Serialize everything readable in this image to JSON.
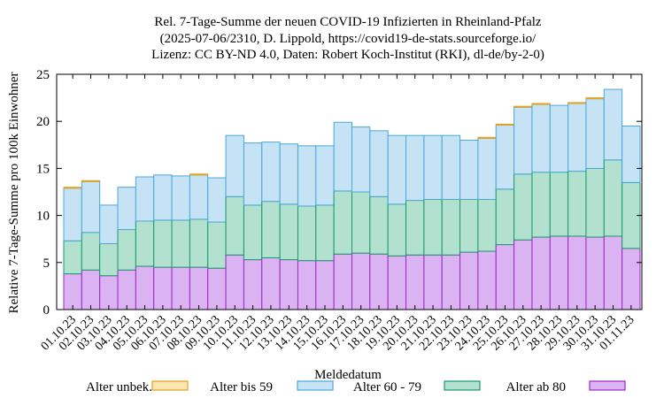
{
  "chart_data": {
    "type": "bar",
    "stacked": true,
    "title_lines": [
      "Rel. 7-Tage-Summe der neuen COVID-19 Infizierten in Rheinland-Pfalz",
      "(2025-07-06/2310, D. Lippold, https://covid19-de-stats.sourceforge.io/",
      "Lizenz: CC BY-ND 4.0, Daten: Robert Koch-Institut (RKI), dl-de/by-2-0)"
    ],
    "xlabel": "Meldedatum",
    "ylabel": "Relative 7-Tage-Summe pro 100k Einwohner",
    "ylim": [
      0,
      25
    ],
    "yticks": [
      0,
      5,
      10,
      15,
      20,
      25
    ],
    "grid": false,
    "legend_position": "bottom",
    "categories": [
      "01.10.23",
      "02.10.23",
      "03.10.23",
      "04.10.23",
      "05.10.23",
      "06.10.23",
      "07.10.23",
      "08.10.23",
      "09.10.23",
      "10.10.23",
      "11.10.23",
      "12.10.23",
      "13.10.23",
      "14.10.23",
      "15.10.23",
      "16.10.23",
      "17.10.23",
      "18.10.23",
      "19.10.23",
      "20.10.23",
      "21.10.23",
      "22.10.23",
      "23.10.23",
      "24.10.23",
      "25.10.23",
      "26.10.23",
      "27.10.23",
      "28.10.23",
      "29.10.23",
      "30.10.23",
      "31.10.23",
      "01.11.23"
    ],
    "series": [
      {
        "name": "Alter ab 80",
        "fill": "#dcb3f2",
        "stroke": "#9a2ac6",
        "values": [
          3.8,
          4.2,
          3.6,
          4.2,
          4.6,
          4.5,
          4.5,
          4.5,
          4.4,
          5.8,
          5.3,
          5.5,
          5.3,
          5.2,
          5.2,
          5.9,
          6.0,
          5.9,
          5.7,
          5.8,
          5.8,
          5.8,
          6.1,
          6.2,
          6.9,
          7.4,
          7.7,
          7.8,
          7.8,
          7.7,
          7.8,
          6.5
        ]
      },
      {
        "name": "Alter 60 - 79",
        "fill": "#b3e1cf",
        "stroke": "#1a9a6a",
        "values": [
          3.5,
          4.0,
          3.4,
          4.3,
          4.8,
          5.0,
          5.0,
          5.1,
          4.9,
          6.2,
          5.8,
          6.0,
          5.9,
          5.8,
          5.9,
          6.7,
          6.5,
          6.1,
          5.5,
          5.8,
          5.9,
          5.9,
          5.6,
          5.5,
          5.9,
          7.0,
          6.9,
          6.8,
          6.9,
          7.3,
          8.1,
          7.0
        ]
      },
      {
        "name": "Alter bis 59",
        "fill": "#c6e3f6",
        "stroke": "#4aa8d8",
        "values": [
          5.6,
          5.4,
          4.1,
          4.5,
          4.7,
          4.8,
          4.7,
          4.7,
          4.7,
          6.5,
          6.6,
          6.3,
          6.4,
          6.4,
          6.3,
          7.3,
          6.9,
          7.0,
          7.3,
          6.9,
          6.8,
          6.8,
          6.3,
          6.5,
          6.8,
          7.1,
          7.2,
          7.1,
          7.2,
          7.4,
          7.5,
          6.0
        ]
      },
      {
        "name": "Alter unbek.",
        "fill": "#fde5b2",
        "stroke": "#e0a020",
        "values": [
          0.1,
          0.1,
          0.0,
          0.0,
          0.0,
          0.0,
          0.0,
          0.1,
          0.0,
          0.0,
          0.0,
          0.0,
          0.0,
          0.0,
          0.0,
          0.0,
          0.0,
          0.0,
          0.0,
          0.0,
          0.0,
          0.0,
          0.0,
          0.1,
          0.1,
          0.1,
          0.1,
          0.0,
          0.1,
          0.1,
          0.0,
          0.0
        ]
      }
    ],
    "legend_order": [
      "Alter unbek.",
      "Alter bis 59",
      "Alter 60 - 79",
      "Alter ab 80"
    ]
  }
}
